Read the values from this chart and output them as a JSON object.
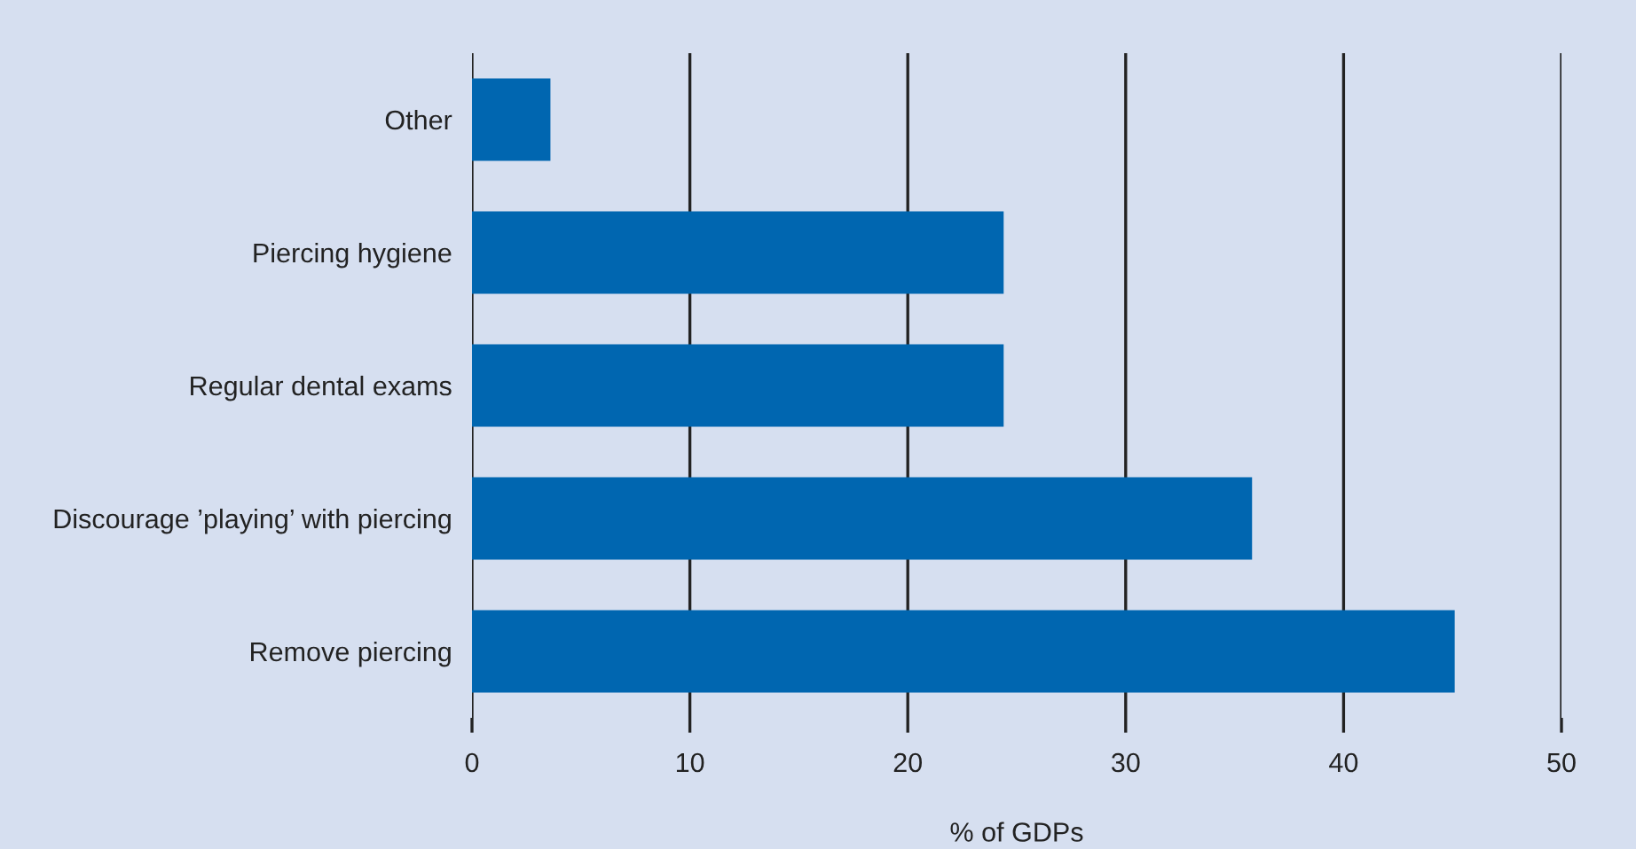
{
  "chart_data": {
    "type": "bar",
    "orientation": "horizontal",
    "categories": [
      "Other",
      "Piercing hygiene",
      "Regular dental exams",
      "Discourage ’playing’ with piercing",
      "Remove piercing"
    ],
    "values": [
      3.6,
      24.4,
      24.4,
      35.8,
      45.1
    ],
    "color": "#0066b0",
    "xlim": [
      0,
      50
    ],
    "xticks": [
      0,
      10,
      20,
      30,
      40,
      50
    ],
    "xlabel": "% of GDPs",
    "grid": "x"
  }
}
